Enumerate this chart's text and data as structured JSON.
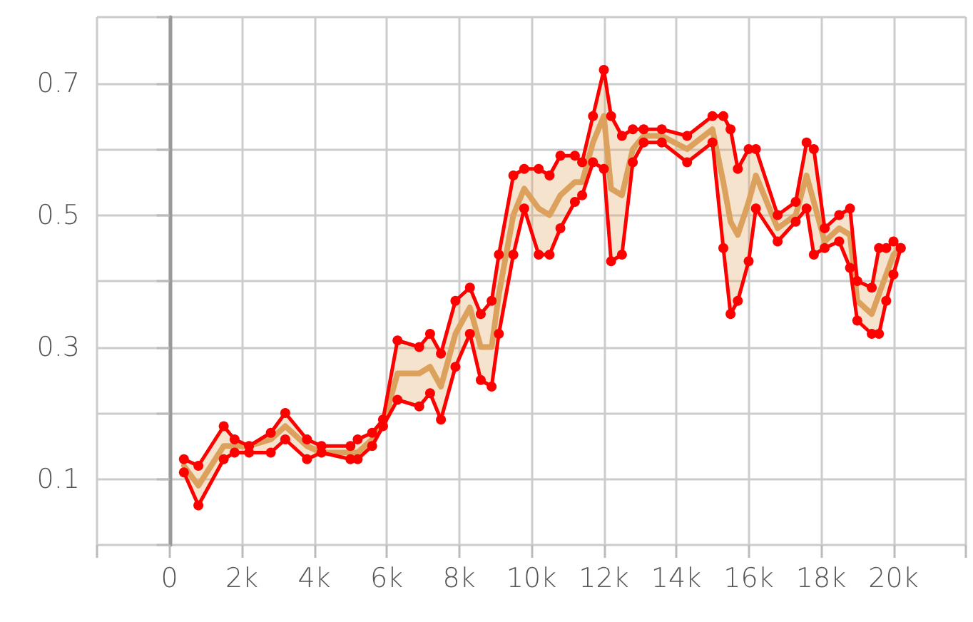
{
  "chart_data": {
    "type": "line",
    "x": [
      400,
      800,
      1500,
      1800,
      2200,
      2800,
      3200,
      3800,
      4200,
      5000,
      5200,
      5600,
      5900,
      6300,
      6900,
      7200,
      7500,
      7900,
      8300,
      8600,
      8900,
      9100,
      9500,
      9800,
      10200,
      10500,
      10800,
      11200,
      11400,
      11700,
      12000,
      12200,
      12500,
      12800,
      13100,
      13600,
      14300,
      15000,
      15300,
      15500,
      15700,
      16000,
      16200,
      16800,
      17300,
      17600,
      17800,
      18100,
      18500,
      18800,
      19000,
      19400,
      19600,
      19800,
      20000,
      20200
    ],
    "series": [
      {
        "color": "#ff0000",
        "values": [
          0.13,
          0.12,
          0.18,
          0.16,
          0.15,
          0.17,
          0.2,
          0.16,
          0.15,
          0.15,
          0.16,
          0.17,
          0.19,
          0.31,
          0.3,
          0.32,
          0.29,
          0.37,
          0.39,
          0.35,
          0.37,
          0.44,
          0.56,
          0.57,
          0.57,
          0.56,
          0.59,
          0.59,
          0.58,
          0.65,
          0.72,
          0.65,
          0.62,
          0.63,
          0.63,
          0.63,
          0.62,
          0.65,
          0.65,
          0.63,
          0.57,
          0.6,
          0.6,
          0.5,
          0.52,
          0.61,
          0.6,
          0.48,
          0.5,
          0.51,
          0.4,
          0.39,
          0.45,
          0.45,
          0.46,
          0.45
        ]
      },
      {
        "color": "#ff0000",
        "values": [
          0.11,
          0.06,
          0.13,
          0.14,
          0.14,
          0.14,
          0.16,
          0.13,
          0.14,
          0.13,
          0.13,
          0.15,
          0.18,
          0.22,
          0.21,
          0.23,
          0.19,
          0.27,
          0.32,
          0.25,
          0.24,
          0.32,
          0.44,
          0.51,
          0.44,
          0.44,
          0.48,
          0.52,
          0.53,
          0.58,
          0.57,
          0.43,
          0.44,
          0.58,
          0.61,
          0.61,
          0.58,
          0.61,
          0.45,
          0.35,
          0.37,
          0.43,
          0.51,
          0.46,
          0.49,
          0.51,
          0.44,
          0.45,
          0.46,
          0.42,
          0.34,
          0.32,
          0.32,
          0.37,
          0.41,
          0.45
        ]
      },
      {
        "color": "#dda15e",
        "marker": "none",
        "values": [
          0.12,
          0.09,
          0.15,
          0.15,
          0.15,
          0.16,
          0.18,
          0.15,
          0.14,
          0.14,
          0.14,
          0.16,
          0.18,
          0.26,
          0.26,
          0.27,
          0.24,
          0.32,
          0.36,
          0.3,
          0.3,
          0.38,
          0.5,
          0.54,
          0.51,
          0.5,
          0.53,
          0.55,
          0.55,
          0.61,
          0.65,
          0.54,
          0.53,
          0.6,
          0.62,
          0.62,
          0.6,
          0.63,
          0.55,
          0.49,
          0.47,
          0.52,
          0.56,
          0.48,
          0.5,
          0.56,
          0.52,
          0.46,
          0.48,
          0.47,
          0.37,
          0.35,
          0.38,
          0.41,
          0.44,
          0.45
        ],
        "lower": [
          0.11,
          0.06,
          0.13,
          0.14,
          0.14,
          0.14,
          0.16,
          0.13,
          0.14,
          0.13,
          0.13,
          0.15,
          0.18,
          0.22,
          0.21,
          0.23,
          0.19,
          0.27,
          0.32,
          0.25,
          0.24,
          0.32,
          0.44,
          0.51,
          0.44,
          0.44,
          0.48,
          0.52,
          0.53,
          0.58,
          0.57,
          0.43,
          0.44,
          0.58,
          0.61,
          0.61,
          0.58,
          0.61,
          0.45,
          0.35,
          0.37,
          0.43,
          0.51,
          0.46,
          0.49,
          0.51,
          0.44,
          0.45,
          0.46,
          0.42,
          0.34,
          0.32,
          0.32,
          0.37,
          0.41,
          0.45
        ],
        "upper": [
          0.13,
          0.12,
          0.18,
          0.16,
          0.15,
          0.17,
          0.2,
          0.16,
          0.15,
          0.15,
          0.16,
          0.17,
          0.19,
          0.31,
          0.3,
          0.32,
          0.29,
          0.37,
          0.39,
          0.35,
          0.37,
          0.44,
          0.56,
          0.57,
          0.57,
          0.56,
          0.59,
          0.59,
          0.58,
          0.65,
          0.72,
          0.65,
          0.62,
          0.63,
          0.63,
          0.63,
          0.62,
          0.65,
          0.65,
          0.63,
          0.57,
          0.6,
          0.6,
          0.5,
          0.52,
          0.61,
          0.6,
          0.48,
          0.5,
          0.51,
          0.4,
          0.39,
          0.45,
          0.45,
          0.46,
          0.45
        ]
      }
    ],
    "marker": "circle",
    "xlim": [
      -2000,
      22000
    ],
    "xticks": [
      {
        "value": -2000,
        "label": null
      },
      {
        "value": 0,
        "label": "0"
      },
      {
        "value": 2000,
        "label": "2k"
      },
      {
        "value": 4000,
        "label": "4k"
      },
      {
        "value": 6000,
        "label": "6k"
      },
      {
        "value": 8000,
        "label": "8k"
      },
      {
        "value": 10000,
        "label": "10k"
      },
      {
        "value": 12000,
        "label": "12k"
      },
      {
        "value": 14000,
        "label": "14k"
      },
      {
        "value": 16000,
        "label": "16k"
      },
      {
        "value": 18000,
        "label": "18k"
      },
      {
        "value": 20000,
        "label": "20k"
      },
      {
        "value": 22000,
        "label": null
      }
    ],
    "ylim": [
      0,
      0.8
    ],
    "yticks": [
      {
        "value": 0,
        "label": null
      },
      0.1,
      {
        "value": 0.2,
        "label": null
      },
      0.3,
      {
        "value": 0.4,
        "label": null
      },
      0.5,
      {
        "value": 0.6,
        "label": null
      },
      0.7,
      {
        "value": 0.8,
        "label": null
      }
    ],
    "grid": true
  }
}
